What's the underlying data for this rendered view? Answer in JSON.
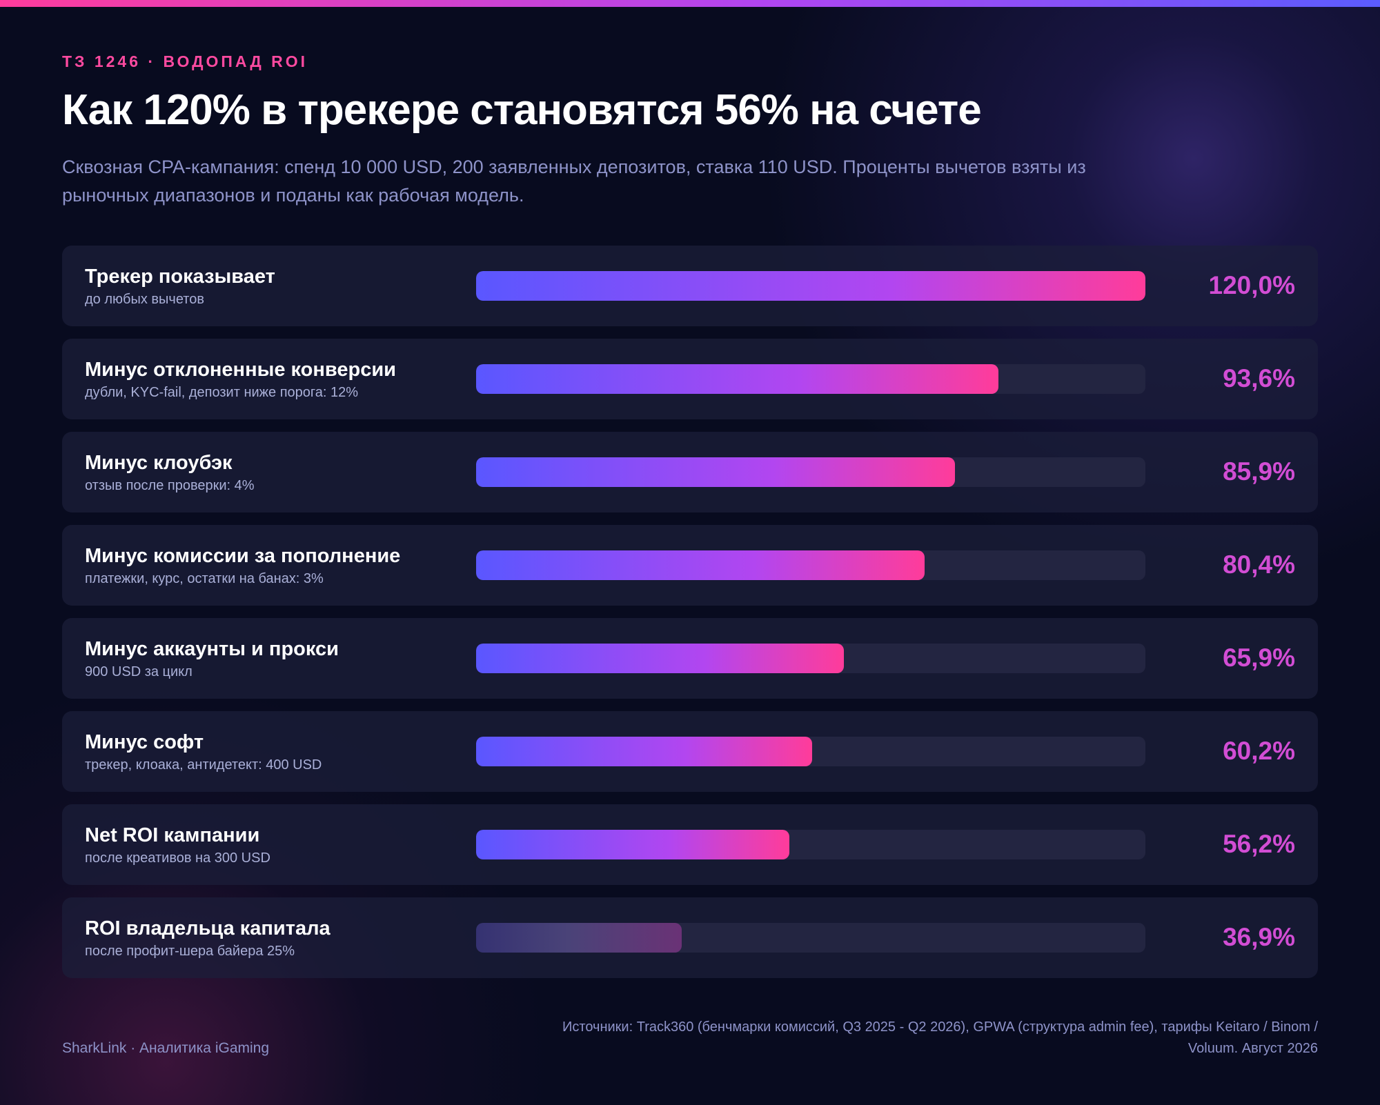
{
  "header": {
    "kicker": "ТЗ 1246 · ВОДОПАД ROI",
    "title": "Как 120% в трекере становятся 56% на счете",
    "subtitle": "Сквозная CPA-кампания: спенд 10 000 USD, 200 заявленных депозитов, ставка 110 USD. Проценты вычетов взяты из рыночных диапазонов и поданы как рабочая модель."
  },
  "chart_data": {
    "type": "bar",
    "orientation": "horizontal",
    "xlim": [
      0,
      120
    ],
    "grid": false,
    "categories": [
      "Трекер показывает",
      "Минус отклоненные конверсии",
      "Минус клоубэк",
      "Минус комиссии за пополнение",
      "Минус аккаунты и прокси",
      "Минус софт",
      "Net ROI кампании",
      "ROI владельца капитала"
    ],
    "notes": [
      "до любых вычетов",
      "дубли, KYC-fail, депозит ниже порога: 12%",
      "отзыв после проверки: 4%",
      "платежки, курс, остатки на банах: 3%",
      "900 USD за цикл",
      "трекер, клоака, антидетект: 400 USD",
      "после креативов на 300 USD",
      "после профит-шера байера 25%"
    ],
    "values": [
      120.0,
      93.6,
      85.9,
      80.4,
      65.9,
      60.2,
      56.2,
      36.9
    ],
    "value_labels": [
      "120,0%",
      "93,6%",
      "85,9%",
      "80,4%",
      "65,9%",
      "60,2%",
      "56,2%",
      "36,9%"
    ],
    "muted_last": true,
    "colors": {
      "gradient_start": "#5a57ff",
      "gradient_mid": "#b246f0",
      "gradient_end": "#ff3c9a",
      "value_text": "#d24dd4",
      "track": "#232541"
    }
  },
  "footer": {
    "brand": "SharkLink · Аналитика iGaming",
    "sources": "Источники: Track360 (бенчмарки комиссий, Q3 2025 - Q2 2026), GPWA (структура admin fee), тарифы Keitaro / Binom / Voluum. Август 2026"
  }
}
